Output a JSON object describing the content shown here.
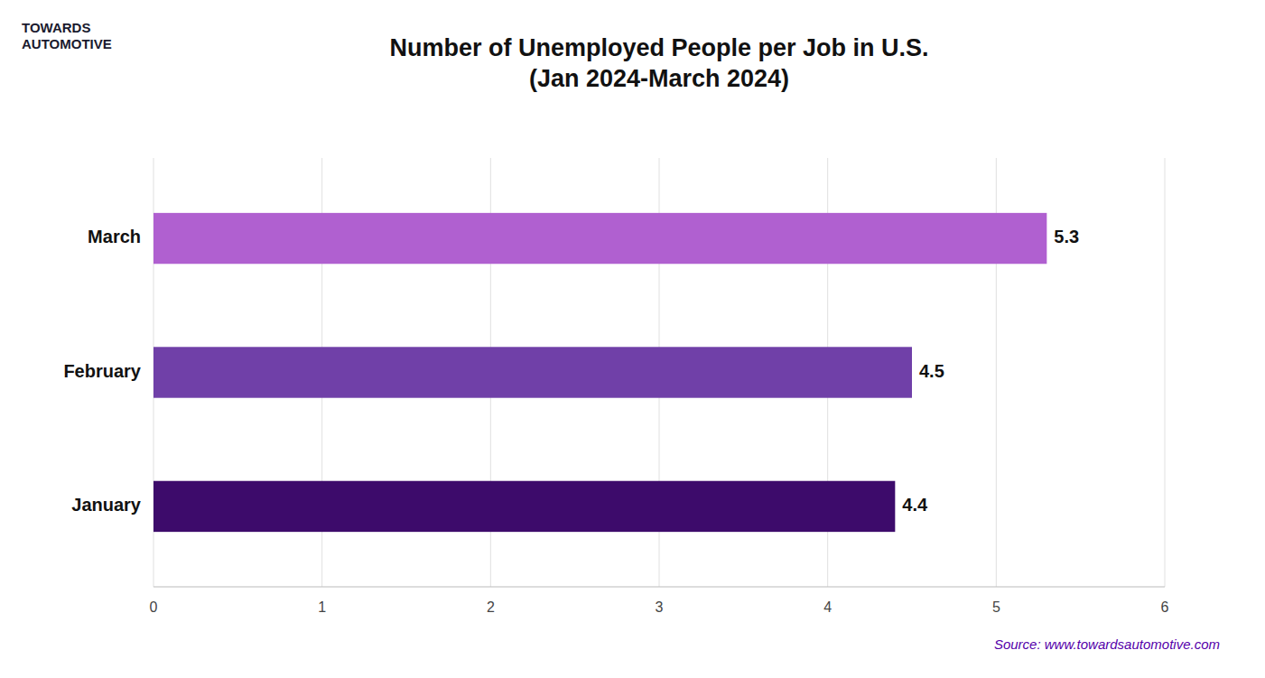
{
  "chart_data": {
    "type": "bar",
    "orientation": "horizontal",
    "title": "Number of Unemployed People per Job in U.S.\n(Jan 2024-March 2024)",
    "categories": [
      "January",
      "February",
      "March"
    ],
    "values": [
      4.4,
      4.5,
      5.3
    ],
    "colors": [
      "#3d0b6b",
      "#7040a8",
      "#b060d0"
    ],
    "xlim": [
      0,
      6
    ],
    "xticks": [
      0,
      1,
      2,
      3,
      4,
      5,
      6
    ],
    "grid": true,
    "data_labels": true,
    "annotations": [
      "TOWARDS\nAUTOMOTIVE",
      "Source: www.towardsautomotive.com"
    ]
  }
}
